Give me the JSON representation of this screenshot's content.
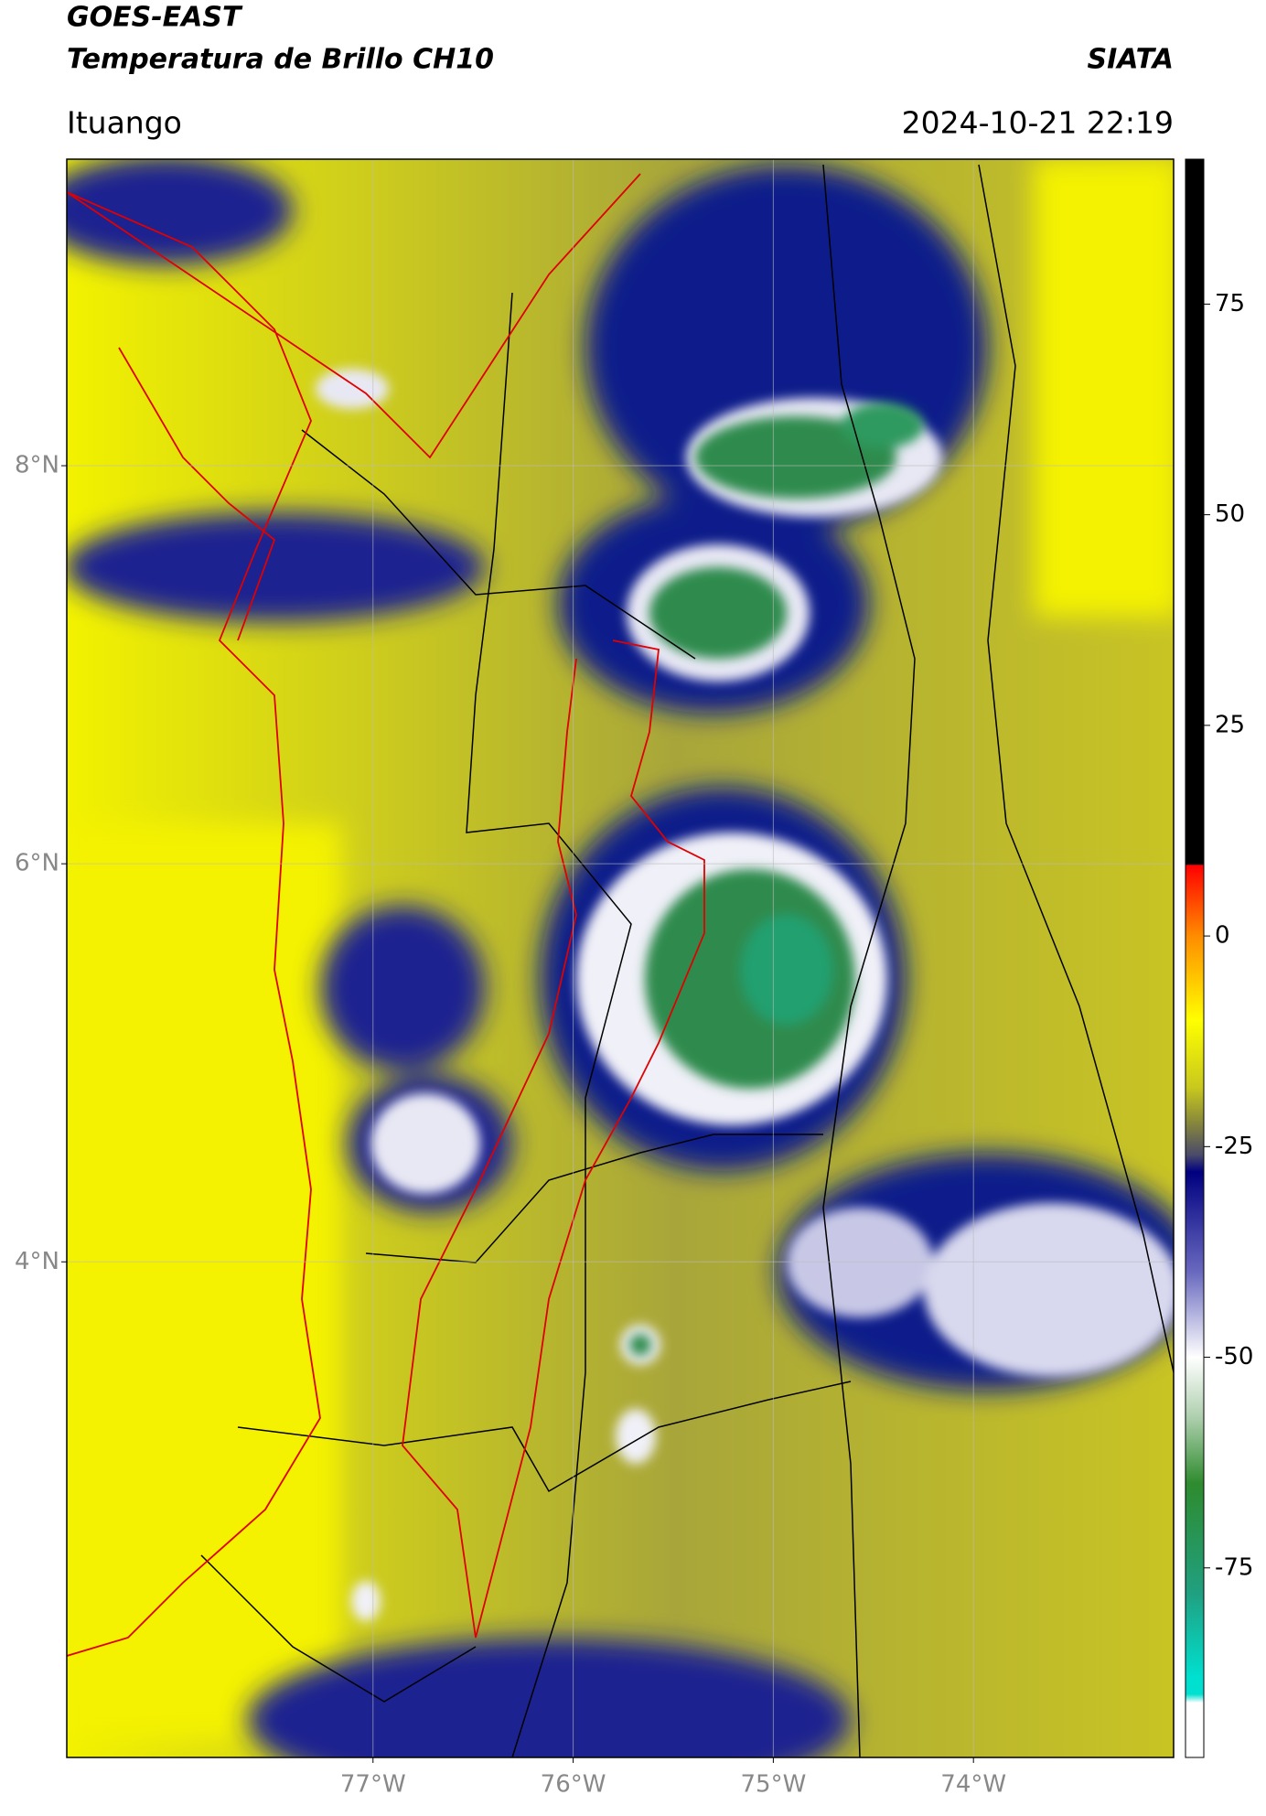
{
  "header": {
    "satellite": "GOES-EAST",
    "product": "Temperatura de Brillo CH10",
    "agency": "SIATA",
    "location": "Ituango",
    "datetime": "2024-10-21 22:19"
  },
  "map": {
    "xlim": [
      -78.53,
      -73.0
    ],
    "ylim": [
      1.51,
      9.54
    ],
    "xticks": [
      {
        "value": -77,
        "label": "77°W"
      },
      {
        "value": -76,
        "label": "76°W"
      },
      {
        "value": -75,
        "label": "75°W"
      },
      {
        "value": -74,
        "label": "74°W"
      }
    ],
    "yticks": [
      {
        "value": 8,
        "label": "8°N"
      },
      {
        "value": 6,
        "label": "6°N"
      },
      {
        "value": 4,
        "label": "4°N"
      }
    ],
    "grid": true
  },
  "colorbar": {
    "lim": [
      -97.5,
      92.2
    ],
    "ticks": [
      75,
      50,
      25,
      0,
      -25,
      -50,
      -75
    ],
    "colormap": [
      {
        "value": 92.2,
        "color": "#000000"
      },
      {
        "value": 8.5,
        "color": "#000000"
      },
      {
        "value": 8.4,
        "color": "#ff0000"
      },
      {
        "value": 0,
        "color": "#ff8c00"
      },
      {
        "value": -10,
        "color": "#ffff00"
      },
      {
        "value": -18,
        "color": "#c8c81e"
      },
      {
        "value": -22,
        "color": "#8a8a3a"
      },
      {
        "value": -26,
        "color": "#4a4a6a"
      },
      {
        "value": -28,
        "color": "#000080"
      },
      {
        "value": -40,
        "color": "#6a6ac0"
      },
      {
        "value": -50,
        "color": "#ffffff"
      },
      {
        "value": -57,
        "color": "#b0d0b0"
      },
      {
        "value": -65,
        "color": "#2e8b2e"
      },
      {
        "value": -78,
        "color": "#20a080"
      },
      {
        "value": -88,
        "color": "#00e0d0"
      },
      {
        "value": -90,
        "color": "#00e0d0"
      },
      {
        "value": -91,
        "color": "#ffffff"
      },
      {
        "value": -97.5,
        "color": "#ffffff"
      }
    ]
  }
}
